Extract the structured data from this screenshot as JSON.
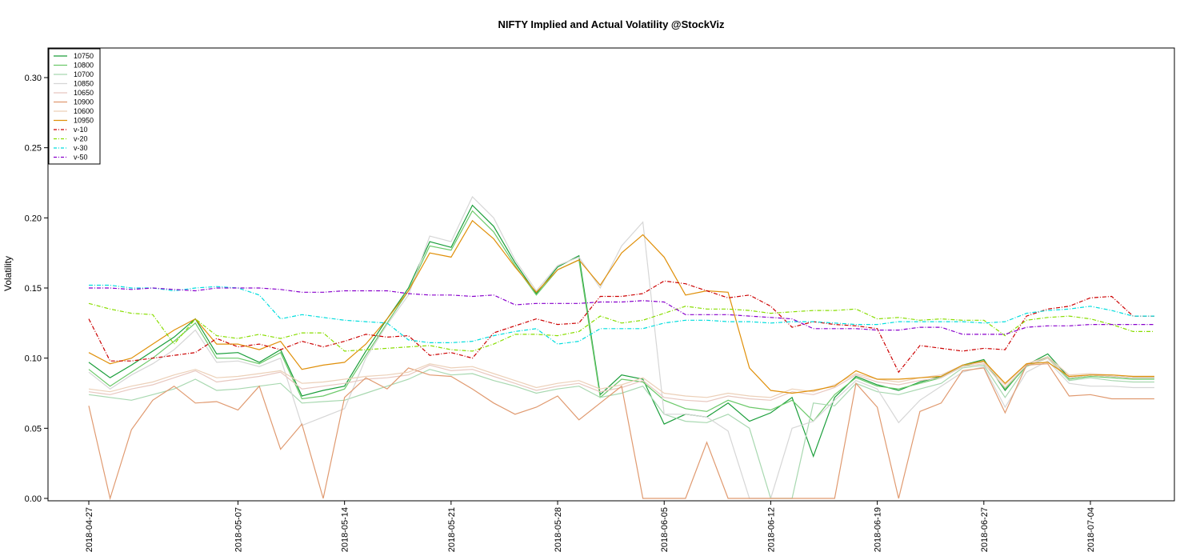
{
  "chart_data": {
    "type": "line",
    "title": "NIFTY Implied and Actual Volatility @StockViz",
    "xlabel": "",
    "ylabel": "Volatility",
    "ylim": [
      0,
      0.32
    ],
    "yticks": [
      "0.00",
      "0.05",
      "0.10",
      "0.15",
      "0.20",
      "0.25",
      "0.30"
    ],
    "xticks": [
      "2018-04-27",
      "2018-05-07",
      "2018-05-14",
      "2018-05-21",
      "2018-05-28",
      "2018-06-05",
      "2018-06-12",
      "2018-06-19",
      "2018-06-27",
      "2018-07-04"
    ],
    "xticks_index": [
      0,
      7,
      12,
      17,
      22,
      27,
      32,
      37,
      42,
      47
    ],
    "n_points": 51,
    "legend_position": "top-left",
    "grid": false,
    "series": [
      {
        "name": "10750",
        "color": "#1a9e3a",
        "dash": false,
        "values": [
          0.097,
          0.086,
          0.095,
          0.105,
          0.115,
          0.128,
          0.103,
          0.104,
          0.097,
          0.106,
          0.073,
          0.077,
          0.08,
          0.105,
          0.128,
          0.15,
          0.183,
          0.179,
          0.209,
          0.194,
          0.168,
          0.146,
          0.165,
          0.173,
          0.074,
          0.088,
          0.085,
          0.053,
          0.06,
          0.058,
          0.068,
          0.055,
          0.061,
          0.072,
          0.03,
          0.072,
          0.087,
          0.081,
          0.077,
          0.083,
          0.087,
          0.095,
          0.099,
          0.077,
          0.095,
          0.103,
          0.086,
          0.088,
          0.087,
          0.086,
          0.086
        ]
      },
      {
        "name": "10800",
        "color": "#6cc96a",
        "dash": false,
        "values": [
          0.092,
          0.08,
          0.09,
          0.1,
          0.112,
          0.125,
          0.1,
          0.1,
          0.096,
          0.104,
          0.071,
          0.073,
          0.078,
          0.102,
          0.125,
          0.148,
          0.18,
          0.177,
          0.205,
          0.19,
          0.166,
          0.145,
          0.163,
          0.17,
          0.072,
          0.085,
          0.083,
          0.07,
          0.064,
          0.062,
          0.07,
          0.065,
          0.063,
          0.07,
          0.055,
          0.074,
          0.086,
          0.08,
          0.078,
          0.082,
          0.086,
          0.094,
          0.098,
          0.078,
          0.094,
          0.101,
          0.085,
          0.087,
          0.086,
          0.085,
          0.085
        ]
      },
      {
        "name": "10700",
        "color": "#a8d8b0",
        "dash": false,
        "values": [
          0.074,
          0.072,
          0.07,
          0.074,
          0.078,
          0.085,
          0.077,
          0.078,
          0.08,
          0.082,
          0.068,
          0.069,
          0.07,
          0.075,
          0.08,
          0.085,
          0.092,
          0.088,
          0.089,
          0.084,
          0.08,
          0.075,
          0.078,
          0.08,
          0.072,
          0.075,
          0.08,
          0.06,
          0.055,
          0.054,
          0.06,
          0.05,
          0.0,
          0.0,
          0.068,
          0.066,
          0.082,
          0.076,
          0.074,
          0.078,
          0.082,
          0.093,
          0.095,
          0.072,
          0.094,
          0.1,
          0.084,
          0.086,
          0.084,
          0.083,
          0.083
        ]
      },
      {
        "name": "10850",
        "color": "#d6d6d6",
        "dash": false,
        "values": [
          0.09,
          0.078,
          0.088,
          0.096,
          0.106,
          0.12,
          0.097,
          0.098,
          0.094,
          0.1,
          0.052,
          0.058,
          0.064,
          0.1,
          0.124,
          0.145,
          0.187,
          0.183,
          0.215,
          0.2,
          0.17,
          0.148,
          0.166,
          0.172,
          0.15,
          0.18,
          0.197,
          0.06,
          0.06,
          0.058,
          0.048,
          0.0,
          0.0,
          0.05,
          0.055,
          0.07,
          0.084,
          0.078,
          0.054,
          0.07,
          0.08,
          0.09,
          0.094,
          0.065,
          0.09,
          0.098,
          0.082,
          0.08,
          0.08,
          0.079,
          0.079
        ]
      },
      {
        "name": "10650",
        "color": "#e8c8c0",
        "dash": false,
        "values": [
          0.076,
          0.074,
          0.078,
          0.081,
          0.086,
          0.091,
          0.083,
          0.085,
          0.087,
          0.09,
          0.078,
          0.08,
          0.082,
          0.085,
          0.086,
          0.088,
          0.095,
          0.091,
          0.092,
          0.087,
          0.082,
          0.077,
          0.08,
          0.082,
          0.076,
          0.079,
          0.084,
          0.072,
          0.07,
          0.069,
          0.073,
          0.071,
          0.07,
          0.076,
          0.074,
          0.079,
          0.088,
          0.083,
          0.081,
          0.084,
          0.086,
          0.094,
          0.096,
          0.079,
          0.095,
          0.1,
          0.086,
          0.088,
          0.087,
          0.086,
          0.086
        ]
      },
      {
        "name": "10900",
        "color": "#e09a70",
        "dash": false,
        "values": [
          0.066,
          0.0,
          0.049,
          0.07,
          0.08,
          0.068,
          0.069,
          0.063,
          0.08,
          0.035,
          0.053,
          0.0,
          0.072,
          0.086,
          0.078,
          0.093,
          0.088,
          0.087,
          0.078,
          0.068,
          0.06,
          0.065,
          0.073,
          0.056,
          0.068,
          0.08,
          0.0,
          0.0,
          0.0,
          0.04,
          0.0,
          0.0,
          0.0,
          0.0,
          0.0,
          0.0,
          0.082,
          0.065,
          0.0,
          0.062,
          0.068,
          0.091,
          0.093,
          0.061,
          0.095,
          0.096,
          0.073,
          0.074,
          0.071,
          0.071,
          0.071
        ]
      },
      {
        "name": "10600",
        "color": "#ecd0b8",
        "dash": false,
        "values": [
          0.078,
          0.076,
          0.08,
          0.083,
          0.088,
          0.092,
          0.086,
          0.087,
          0.089,
          0.091,
          0.082,
          0.083,
          0.085,
          0.087,
          0.088,
          0.09,
          0.096,
          0.093,
          0.094,
          0.089,
          0.084,
          0.079,
          0.082,
          0.084,
          0.078,
          0.081,
          0.086,
          0.075,
          0.073,
          0.072,
          0.075,
          0.073,
          0.072,
          0.078,
          0.076,
          0.081,
          0.089,
          0.085,
          0.083,
          0.086,
          0.088,
          0.095,
          0.097,
          0.081,
          0.096,
          0.101,
          0.088,
          0.089,
          0.088,
          0.087,
          0.087
        ]
      },
      {
        "name": "10950",
        "color": "#e0900a",
        "dash": false,
        "values": [
          0.104,
          0.096,
          0.1,
          0.11,
          0.12,
          0.128,
          0.11,
          0.11,
          0.106,
          0.112,
          0.092,
          0.095,
          0.097,
          0.11,
          0.128,
          0.148,
          0.175,
          0.172,
          0.198,
          0.185,
          0.165,
          0.147,
          0.163,
          0.17,
          0.152,
          0.175,
          0.188,
          0.172,
          0.145,
          0.148,
          0.147,
          0.093,
          0.077,
          0.075,
          0.077,
          0.08,
          0.091,
          0.085,
          0.085,
          0.086,
          0.087,
          0.095,
          0.098,
          0.082,
          0.096,
          0.097,
          0.087,
          0.088,
          0.088,
          0.087,
          0.087
        ]
      },
      {
        "name": "v-10",
        "color": "#cc0000",
        "dash": true,
        "values": [
          0.128,
          0.098,
          0.098,
          0.1,
          0.102,
          0.104,
          0.114,
          0.108,
          0.11,
          0.106,
          0.112,
          0.108,
          0.112,
          0.117,
          0.115,
          0.116,
          0.102,
          0.104,
          0.1,
          0.118,
          0.123,
          0.128,
          0.124,
          0.125,
          0.144,
          0.144,
          0.146,
          0.155,
          0.153,
          0.148,
          0.143,
          0.145,
          0.137,
          0.122,
          0.126,
          0.124,
          0.123,
          0.121,
          0.09,
          0.109,
          0.107,
          0.105,
          0.107,
          0.106,
          0.13,
          0.135,
          0.137,
          0.143,
          0.144,
          0.13,
          0.13
        ]
      },
      {
        "name": "v-20",
        "color": "#88dd00",
        "dash": true,
        "values": [
          0.139,
          0.135,
          0.132,
          0.131,
          0.11,
          0.128,
          0.116,
          0.114,
          0.117,
          0.114,
          0.118,
          0.118,
          0.105,
          0.106,
          0.107,
          0.108,
          0.109,
          0.106,
          0.105,
          0.11,
          0.117,
          0.117,
          0.116,
          0.119,
          0.13,
          0.125,
          0.127,
          0.132,
          0.137,
          0.135,
          0.135,
          0.134,
          0.132,
          0.133,
          0.134,
          0.134,
          0.135,
          0.128,
          0.129,
          0.127,
          0.128,
          0.127,
          0.127,
          0.116,
          0.127,
          0.129,
          0.13,
          0.128,
          0.124,
          0.119,
          0.119
        ]
      },
      {
        "name": "v-30",
        "color": "#00dddd",
        "dash": true,
        "values": [
          0.152,
          0.152,
          0.15,
          0.15,
          0.148,
          0.15,
          0.151,
          0.15,
          0.145,
          0.128,
          0.131,
          0.129,
          0.127,
          0.126,
          0.125,
          0.113,
          0.111,
          0.111,
          0.112,
          0.116,
          0.119,
          0.121,
          0.11,
          0.112,
          0.121,
          0.121,
          0.121,
          0.125,
          0.127,
          0.127,
          0.126,
          0.126,
          0.125,
          0.126,
          0.126,
          0.125,
          0.124,
          0.124,
          0.126,
          0.126,
          0.126,
          0.126,
          0.125,
          0.126,
          0.132,
          0.134,
          0.135,
          0.137,
          0.134,
          0.13,
          0.13
        ]
      },
      {
        "name": "v-50",
        "color": "#8800cc",
        "dash": true,
        "values": [
          0.15,
          0.15,
          0.149,
          0.15,
          0.149,
          0.148,
          0.15,
          0.15,
          0.15,
          0.149,
          0.147,
          0.147,
          0.148,
          0.148,
          0.148,
          0.146,
          0.145,
          0.145,
          0.144,
          0.145,
          0.138,
          0.139,
          0.139,
          0.139,
          0.14,
          0.14,
          0.141,
          0.14,
          0.131,
          0.131,
          0.131,
          0.13,
          0.129,
          0.128,
          0.121,
          0.121,
          0.121,
          0.12,
          0.12,
          0.122,
          0.122,
          0.117,
          0.117,
          0.117,
          0.122,
          0.123,
          0.123,
          0.124,
          0.124,
          0.124,
          0.124
        ]
      }
    ]
  }
}
